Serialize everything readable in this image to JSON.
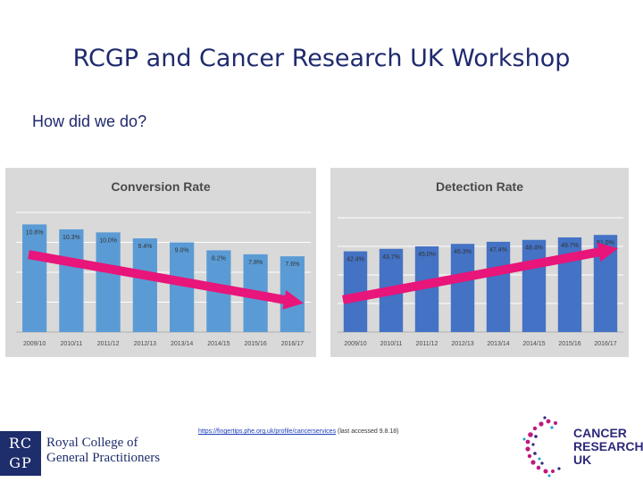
{
  "slide": {
    "title": "RCGP and Cancer Research UK Workshop",
    "subtitle": "How did we do?"
  },
  "source": {
    "url": "https://fingertips.phe.org.uk/profile/cancerservices",
    "note": "(last accessed 9.8.18)"
  },
  "logos": {
    "rcgp_abbrev_top": "RC",
    "rcgp_abbrev_bottom": "GP",
    "rcgp_name_line1": "Royal College of",
    "rcgp_name_line2": "General Practitioners",
    "cruk_line1": "CANCER",
    "cruk_line2": "RESEARCH",
    "cruk_line3": "UK"
  },
  "colors": {
    "title": "#1f2a6e",
    "bar_light": "#5b9bd5",
    "bar_dark": "#4472c4",
    "arrow": "#e8157a"
  },
  "chart_data": [
    {
      "type": "bar",
      "title": "Conversion Rate",
      "categories": [
        "2009/10",
        "2010/11",
        "2011/12",
        "2012/13",
        "2013/14",
        "2014/15",
        "2015/16",
        "2016/17"
      ],
      "values": [
        10.8,
        10.3,
        10.0,
        9.4,
        9.0,
        8.2,
        7.8,
        7.6
      ],
      "labels": [
        "10.8%",
        "10.3%",
        "10.0%",
        "9.4%",
        "9.0%",
        "8.2%",
        "7.8%",
        "7.6%"
      ],
      "ylim": [
        0,
        12
      ],
      "grid": true,
      "trend": "down"
    },
    {
      "type": "bar",
      "title": "Detection Rate",
      "categories": [
        "2009/10",
        "2010/11",
        "2011/12",
        "2012/13",
        "2013/14",
        "2014/15",
        "2015/16",
        "2016/17"
      ],
      "values": [
        42.4,
        43.7,
        45.0,
        46.3,
        47.4,
        48.4,
        49.7,
        51.0
      ],
      "labels": [
        "42.4%",
        "43.7%",
        "45.0%",
        "46.3%",
        "47.4%",
        "48.4%",
        "49.7%",
        "51.0%"
      ],
      "ylim": [
        0,
        60
      ],
      "grid": true,
      "trend": "up"
    }
  ]
}
